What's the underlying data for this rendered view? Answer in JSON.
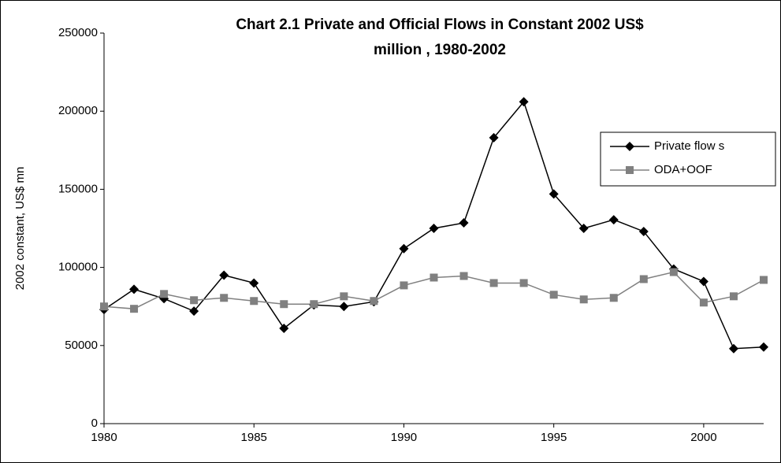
{
  "chart_data": {
    "type": "line",
    "title_lines": [
      "Chart 2.1 Private and Official Flows in Constant 2002 US$",
      "million , 1980-2002"
    ],
    "ylabel": "2002 constant, US$ mn",
    "x": [
      1980,
      1981,
      1982,
      1983,
      1984,
      1985,
      1986,
      1987,
      1988,
      1989,
      1990,
      1991,
      1992,
      1993,
      1994,
      1995,
      1996,
      1997,
      1998,
      1999,
      2000,
      2001,
      2002
    ],
    "xlim": [
      1980,
      2002
    ],
    "xticks": [
      1980,
      1985,
      1990,
      1995,
      2000
    ],
    "ylim": [
      0,
      250000
    ],
    "yticks": [
      0,
      50000,
      100000,
      150000,
      200000,
      250000
    ],
    "grid": false,
    "legend": "right",
    "series": [
      {
        "name": "Private flow s",
        "color": "#000000",
        "marker": "diamond",
        "values": [
          73000,
          86000,
          80000,
          72000,
          95000,
          90000,
          61000,
          76000,
          75000,
          78000,
          112000,
          125000,
          128500,
          183000,
          206000,
          147000,
          125000,
          130500,
          123000,
          99000,
          91000,
          48000,
          49000
        ]
      },
      {
        "name": "ODA+OOF",
        "color": "#808080",
        "marker": "square",
        "values": [
          75000,
          73500,
          83000,
          79000,
          80500,
          78500,
          76500,
          76500,
          81500,
          78500,
          88500,
          93500,
          94500,
          90000,
          90000,
          82500,
          79500,
          80500,
          92500,
          97000,
          77500,
          81500,
          92000
        ]
      }
    ]
  }
}
